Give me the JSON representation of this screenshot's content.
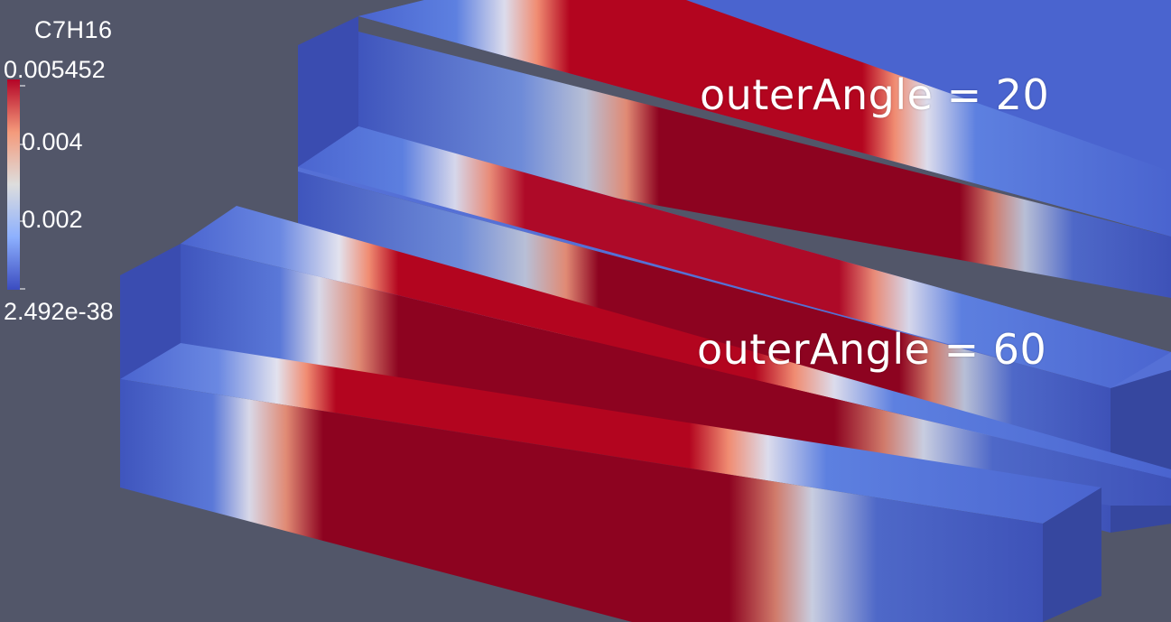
{
  "legend": {
    "title": "C7H16",
    "max_label": "0.005452",
    "tick_1": "0.004",
    "tick_2": "0.002",
    "min_label": "2.492e-38",
    "colormap": [
      "#3b4cc0",
      "#8db0fe",
      "#dddddd",
      "#f49a7b",
      "#b40426"
    ]
  },
  "annotations": {
    "top": "outerAngle = 20",
    "bottom": "outerAngle = 60"
  },
  "colors": {
    "background": "#525669",
    "low_top": "#4a64cf",
    "low_side": "#3e52b8",
    "high_top": "#b3051f",
    "high_side": "#8d0320"
  }
}
